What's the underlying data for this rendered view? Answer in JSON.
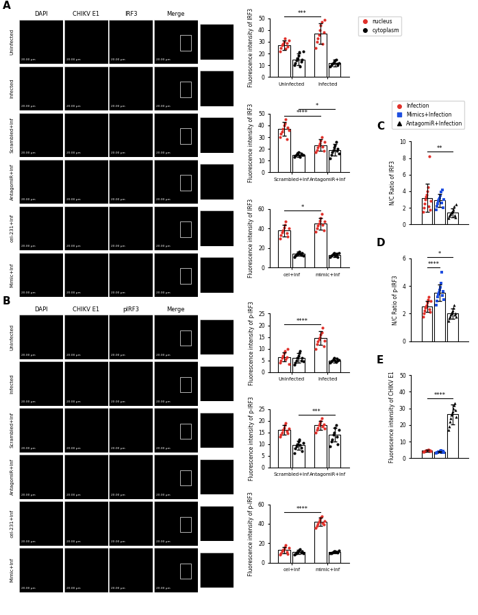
{
  "images": [
    {
      "panel": "A",
      "columns": [
        "DAPI",
        "CHIKV E1",
        "IRF3",
        "Merge"
      ],
      "rows": [
        "Uninfected",
        "Infected",
        "Scrambled+Inf",
        "AntagomiR+Inf",
        "cel-231+Inf",
        "Mimic+Inf"
      ],
      "scale_bar": "20.00 μm"
    },
    {
      "panel": "B",
      "columns": [
        "DAPI",
        "CHIKV E1",
        "pIRF3",
        "Merge"
      ],
      "rows": [
        "Uninfected",
        "Infected",
        "Scrambled+Inf",
        "AntagomiR+Inf",
        "cel-231+Inf",
        "Mimic+Inf"
      ],
      "scale_bar": "20.00 μm"
    }
  ],
  "chart_data": [
    {
      "type": "bar",
      "ylabel": "Fluorescence intensity of IRF3",
      "categories": [
        "Uninfected",
        "Infected"
      ],
      "legend": "upper left",
      "ylim": [
        0,
        50
      ],
      "yticks": [
        0,
        10,
        20,
        30,
        40,
        50
      ],
      "series": [
        {
          "name": "nucleus",
          "color": "#e0312b",
          "marker": "circle",
          "values": [
            27,
            37
          ],
          "errors": [
            4,
            9
          ],
          "points": [
            [
              22,
              25,
              27,
              28,
              30,
              33,
              24,
              29,
              26,
              31
            ],
            [
              25,
              30,
              33,
              36,
              40,
              44,
              47,
              28,
              38,
              49
            ]
          ]
        },
        {
          "name": "cytoplasm",
          "color": "#000000",
          "marker": "circle",
          "values": [
            15,
            12
          ],
          "errors": [
            5,
            3
          ],
          "points": [
            [
              10,
              12,
              14,
              16,
              18,
              21,
              9,
              13,
              15,
              22
            ],
            [
              9,
              10,
              11,
              12,
              13,
              14,
              15,
              11,
              10,
              12
            ]
          ]
        }
      ],
      "comparisons": [
        {
          "from": [
            0,
            0
          ],
          "to": [
            1,
            0
          ],
          "label": "***"
        }
      ]
    },
    {
      "type": "bar",
      "ylabel": "Fluorescence intensity of IRF3",
      "categories": [
        "Scrambled+Inf",
        "AntagomiR+Inf"
      ],
      "ylim": [
        0,
        50
      ],
      "yticks": [
        0,
        10,
        20,
        30,
        40,
        50
      ],
      "series": [
        {
          "name": "nucleus",
          "color": "#e0312b",
          "marker": "circle",
          "values": [
            37,
            23
          ],
          "errors": [
            6,
            5
          ],
          "points": [
            [
              30,
              33,
              35,
              37,
              40,
              42,
              45,
              28,
              38,
              36
            ],
            [
              17,
              19,
              21,
              23,
              25,
              27,
              30,
              22,
              18,
              26
            ]
          ]
        },
        {
          "name": "cytoplasm",
          "color": "#000000",
          "marker": "circle",
          "values": [
            15,
            19
          ],
          "errors": [
            2,
            5
          ],
          "points": [
            [
              13,
              14,
              15,
              16,
              17,
              14,
              13,
              16,
              15,
              15
            ],
            [
              12,
              15,
              17,
              19,
              21,
              23,
              26,
              18,
              20,
              16
            ]
          ]
        }
      ],
      "comparisons": [
        {
          "from": [
            0,
            0
          ],
          "to": [
            1,
            0
          ],
          "label": "****"
        },
        {
          "from": [
            0,
            1
          ],
          "to": [
            1,
            1
          ],
          "label": "*"
        }
      ]
    },
    {
      "type": "bar",
      "ylabel": "Fluorescence intensity of IRF3",
      "categories": [
        "cel+Inf",
        "mimic+Inf"
      ],
      "ylim": [
        0,
        60
      ],
      "yticks": [
        0,
        20,
        40,
        60
      ],
      "series": [
        {
          "name": "nucleus",
          "color": "#e0312b",
          "marker": "circle",
          "values": [
            38,
            45
          ],
          "errors": [
            6,
            6
          ],
          "points": [
            [
              30,
              33,
              36,
              38,
              41,
              44,
              47,
              35,
              32,
              40
            ],
            [
              37,
              40,
              43,
              45,
              48,
              51,
              55,
              44,
              38,
              47
            ]
          ]
        },
        {
          "name": "cytoplasm",
          "color": "#000000",
          "marker": "circle",
          "values": [
            14,
            13
          ],
          "errors": [
            2,
            2
          ],
          "points": [
            [
              11,
              12,
              13,
              14,
              15,
              16,
              14,
              13,
              15,
              12
            ],
            [
              11,
              12,
              13,
              14,
              15,
              12,
              13,
              14,
              11,
              15
            ]
          ]
        }
      ],
      "comparisons": [
        {
          "from": [
            0,
            0
          ],
          "to": [
            1,
            0
          ],
          "label": "*"
        }
      ]
    },
    {
      "type": "bar",
      "ylabel": "Fluorescence intensity of p-IRF3",
      "categories": [
        "Uninfected",
        "Infected"
      ],
      "ylim": [
        0,
        25
      ],
      "yticks": [
        0,
        5,
        10,
        15,
        20,
        25
      ],
      "series": [
        {
          "name": "nucleus",
          "color": "#e0312b",
          "marker": "circle",
          "values": [
            6.5,
            14.5
          ],
          "errors": [
            2,
            3
          ],
          "points": [
            [
              4,
              5,
              6,
              7,
              8,
              9,
              5.5,
              6.5,
              10,
              3.5
            ],
            [
              10,
              12,
              13,
              14,
              15,
              16,
              17,
              19,
              11,
              13.5
            ]
          ]
        },
        {
          "name": "cytoplasm",
          "color": "#000000",
          "marker": "circle",
          "values": [
            6,
            5
          ],
          "errors": [
            2,
            1
          ],
          "points": [
            [
              3,
              4,
              5,
              6,
              7,
              8,
              9,
              5,
              6,
              4.5
            ],
            [
              4,
              4.5,
              5,
              5.5,
              6,
              5,
              4.2,
              5.8,
              4.8,
              5.2
            ]
          ]
        }
      ],
      "comparisons": [
        {
          "from": [
            0,
            0
          ],
          "to": [
            1,
            0
          ],
          "label": "****"
        }
      ]
    },
    {
      "type": "bar",
      "ylabel": "Fluorescence intensity of p-IRF3",
      "categories": [
        "Scrambled+Inf",
        "AntagomiR+Inf"
      ],
      "ylim": [
        0,
        25
      ],
      "yticks": [
        0,
        5,
        10,
        15,
        20,
        25
      ],
      "series": [
        {
          "name": "nucleus",
          "color": "#e0312b",
          "marker": "circle",
          "values": [
            16,
            18
          ],
          "errors": [
            2,
            2
          ],
          "points": [
            [
              13,
              14,
              15,
              16,
              17,
              18,
              19,
              15.5,
              14.5,
              16.5
            ],
            [
              15,
              16,
              17,
              18,
              19,
              20,
              21,
              17.5,
              18.5,
              16.5
            ]
          ]
        },
        {
          "name": "cytoplasm",
          "color": "#000000",
          "marker": "circle",
          "values": [
            9.5,
            14
          ],
          "errors": [
            2,
            3
          ],
          "points": [
            [
              6,
              8,
              9,
              10,
              11,
              12,
              9.5,
              8.5,
              7,
              10.5
            ],
            [
              9,
              11,
              12,
              14,
              15,
              17,
              18,
              13,
              10,
              16
            ]
          ]
        }
      ],
      "comparisons": [
        {
          "from": [
            0,
            1
          ],
          "to": [
            1,
            1
          ],
          "label": "***"
        }
      ]
    },
    {
      "type": "bar",
      "ylabel": "Fluorescence intensity of p-IRF3",
      "categories": [
        "cel+Inf",
        "mimic+Inf"
      ],
      "ylim": [
        0,
        60
      ],
      "yticks": [
        0,
        20,
        40,
        60
      ],
      "series": [
        {
          "name": "nucleus",
          "color": "#e0312b",
          "marker": "circle",
          "values": [
            13,
            42
          ],
          "errors": [
            3,
            4
          ],
          "points": [
            [
              8,
              10,
              12,
              13,
              14,
              16,
              18,
              11,
              9,
              15
            ],
            [
              36,
              38,
              40,
              42,
              44,
              46,
              48,
              41,
              39,
              43
            ]
          ]
        },
        {
          "name": "cytoplasm",
          "color": "#000000",
          "marker": "circle",
          "values": [
            11,
            11
          ],
          "errors": [
            2,
            1
          ],
          "points": [
            [
              8,
              9,
              10,
              11,
              12,
              13,
              14,
              10.5,
              11.5,
              9.5
            ],
            [
              9.5,
              10,
              10.5,
              11,
              11.5,
              12,
              10.8,
              11.2,
              10.2,
              12.5
            ]
          ]
        }
      ],
      "comparisons": [
        {
          "from": [
            0,
            0
          ],
          "to": [
            1,
            0
          ],
          "label": "****"
        }
      ]
    },
    {
      "type": "bar",
      "panel": "C",
      "ylabel": "N/C Ratio of IRF3",
      "tick_labels": "y",
      "legend": "lower center",
      "ylim": [
        0,
        10
      ],
      "yticks": [
        0,
        2,
        4,
        6,
        8,
        10
      ],
      "series": [
        {
          "name": "Infection",
          "color": "#e0312b",
          "marker": "circle",
          "values": [
            3.2
          ],
          "errors": [
            1.7
          ],
          "points": [
            [
              1.5,
              2,
              2.5,
              3,
              3.3,
              3.6,
              4,
              4.5,
              2.2,
              8.2,
              1.8,
              2.8
            ]
          ]
        },
        {
          "name": "Mimics+Infection",
          "color": "#1f4fe0",
          "marker": "square",
          "values": [
            2.9
          ],
          "errors": [
            0.8
          ],
          "points": [
            [
              1.8,
              2.2,
              2.5,
              2.8,
              3,
              3.2,
              3.5,
              3.9,
              2.6,
              4.2,
              2,
              3
            ]
          ]
        },
        {
          "name": "AntagomiR+Infection",
          "color": "#000000",
          "marker": "triangle",
          "values": [
            1.4
          ],
          "errors": [
            0.5
          ],
          "points": [
            [
              0.8,
              1,
              1.2,
              1.3,
              1.4,
              1.5,
              1.6,
              1.8,
              2.2,
              1.1,
              0.9,
              2.4
            ]
          ]
        }
      ],
      "comparisons": [
        {
          "from": [
            0,
            0
          ],
          "to": [
            0,
            2
          ],
          "label": "**"
        }
      ]
    },
    {
      "type": "bar",
      "panel": "D",
      "ylabel": "N/C Ratio of p-IRF3",
      "tick_labels": "y",
      "ylim": [
        0,
        6
      ],
      "yticks": [
        0,
        2,
        4,
        6
      ],
      "series": [
        {
          "name": "Infection",
          "color": "#e0312b",
          "marker": "circle",
          "values": [
            2.5
          ],
          "errors": [
            0.4
          ],
          "points": [
            [
              1.8,
              2,
              2.2,
              2.4,
              2.5,
              2.6,
              2.8,
              3,
              3.2,
              2.3,
              2.1,
              2.9
            ]
          ]
        },
        {
          "name": "Mimics+Infection",
          "color": "#1f4fe0",
          "marker": "square",
          "values": [
            3.5
          ],
          "errors": [
            0.6
          ],
          "points": [
            [
              2.6,
              2.9,
              3.2,
              3.4,
              3.5,
              3.7,
              3.9,
              4.2,
              5,
              3.3,
              3.6,
              3
            ]
          ]
        },
        {
          "name": "AntagomiR+Infection",
          "color": "#000000",
          "marker": "triangle",
          "values": [
            2.0
          ],
          "errors": [
            0.35
          ],
          "points": [
            [
              1.5,
              1.7,
              1.8,
              1.9,
              2,
              2.1,
              2.2,
              2.4,
              2.6,
              1.9,
              2,
              1.8
            ]
          ]
        }
      ],
      "comparisons": [
        {
          "from": [
            0,
            0
          ],
          "to": [
            0,
            1
          ],
          "label": "****"
        },
        {
          "from": [
            0,
            0
          ],
          "to": [
            0,
            2
          ],
          "label": "*"
        }
      ]
    },
    {
      "type": "bar",
      "panel": "E",
      "ylabel": "Fluorescence intensity of CHIKV E1",
      "tick_labels": "y",
      "ylim": [
        0,
        50
      ],
      "yticks": [
        0,
        10,
        20,
        30,
        40,
        50
      ],
      "series": [
        {
          "name": "Infection",
          "color": "#e0312b",
          "marker": "circle",
          "values": [
            4.5
          ],
          "errors": [
            0.5
          ],
          "points": [
            [
              3.8,
              4,
              4.2,
              4.4,
              4.5,
              4.6,
              4.8,
              5,
              5.2,
              4.3,
              4.7,
              4.1
            ]
          ]
        },
        {
          "name": "Mimics+Infection",
          "color": "#1f4fe0",
          "marker": "square",
          "values": [
            3.8
          ],
          "errors": [
            0.5
          ],
          "points": [
            [
              3,
              3.3,
              3.5,
              3.7,
              3.8,
              4,
              4.2,
              4.5,
              3.6,
              3.9,
              4.1,
              3.4
            ]
          ]
        },
        {
          "name": "AntagomiR+Infection",
          "color": "#000000",
          "marker": "triangle",
          "values": [
            26.5
          ],
          "errors": [
            6
          ],
          "points": [
            [
              17,
              19,
              22,
              24,
              26,
              27,
              28,
              30,
              32,
              33,
              29,
              25
            ]
          ]
        }
      ],
      "comparisons": [
        {
          "from": [
            0,
            0
          ],
          "to": [
            0,
            2
          ],
          "label": "****"
        }
      ]
    }
  ]
}
